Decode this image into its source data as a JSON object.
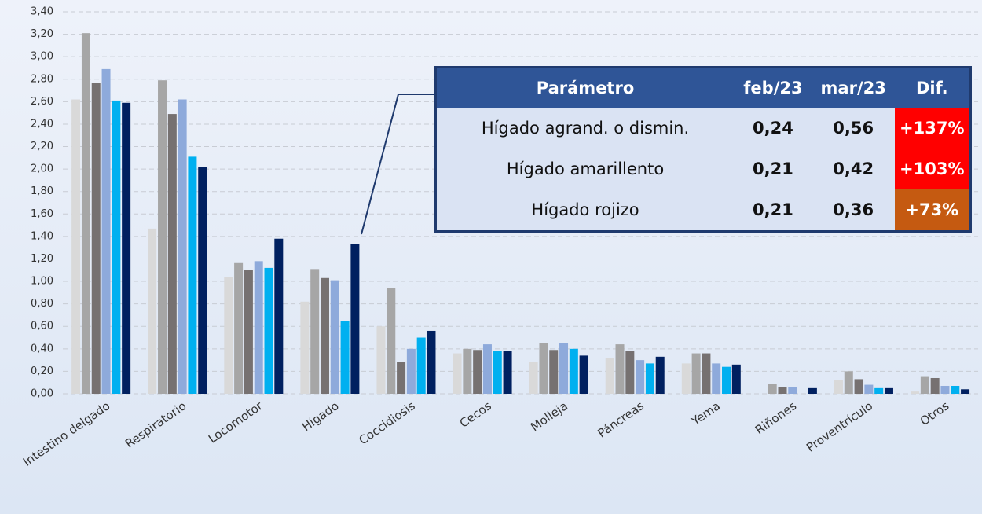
{
  "chart_data": {
    "type": "bar",
    "categories": [
      "Intestino delgado",
      "Respiratorio",
      "Locomotor",
      "Hígado",
      "Coccidiosis",
      "Cecos",
      "Molleja",
      "Páncreas",
      "Yema",
      "Riñones",
      "Proventrículo",
      "Otros"
    ],
    "series": [
      {
        "color": "#d9d9d9",
        "values": [
          2.62,
          1.47,
          1.04,
          0.82,
          0.6,
          0.36,
          0.28,
          0.32,
          0.27,
          null,
          0.12,
          0.02
        ]
      },
      {
        "color": "#a6a6a6",
        "values": [
          3.21,
          2.79,
          1.17,
          1.11,
          0.94,
          0.4,
          0.45,
          0.44,
          0.36,
          0.09,
          0.2,
          0.15
        ]
      },
      {
        "color": "#767171",
        "values": [
          2.77,
          2.49,
          1.1,
          1.03,
          0.28,
          0.39,
          0.39,
          0.38,
          0.36,
          0.06,
          0.13,
          0.14
        ]
      },
      {
        "color": "#8eaadb",
        "values": [
          2.89,
          2.62,
          1.18,
          1.01,
          0.4,
          0.44,
          0.45,
          0.3,
          0.27,
          0.06,
          0.08,
          0.07
        ]
      },
      {
        "color": "#00b0f0",
        "values": [
          2.61,
          2.11,
          1.12,
          0.65,
          0.5,
          0.38,
          0.4,
          0.27,
          0.24,
          null,
          0.05,
          0.07
        ]
      },
      {
        "color": "#002060",
        "values": [
          2.59,
          2.02,
          1.38,
          1.33,
          0.56,
          0.38,
          0.34,
          0.33,
          0.26,
          0.05,
          0.05,
          0.04
        ]
      }
    ],
    "ylim": [
      0,
      3.4
    ],
    "yticks": [
      {
        "value": 0,
        "label": "0,00"
      },
      {
        "value": 0.2,
        "label": "0,20"
      },
      {
        "value": 0.4,
        "label": "0,40"
      },
      {
        "value": 0.6,
        "label": "0,60"
      },
      {
        "value": 0.8,
        "label": "0,80"
      },
      {
        "value": 1,
        "label": "1,00"
      },
      {
        "value": 1.2,
        "label": "1,20"
      },
      {
        "value": 1.4,
        "label": "1,40"
      },
      {
        "value": 1.6,
        "label": "1,60"
      },
      {
        "value": 1.8,
        "label": "1,80"
      },
      {
        "value": 2,
        "label": "2,00"
      },
      {
        "value": 2.2,
        "label": "2,20"
      },
      {
        "value": 2.4,
        "label": "2,40"
      },
      {
        "value": 2.6,
        "label": "2,60"
      },
      {
        "value": 2.8,
        "label": "2,80"
      },
      {
        "value": 3,
        "label": "3,00"
      },
      {
        "value": 3.2,
        "label": "3,20"
      },
      {
        "value": 3.4,
        "label": "3,40"
      }
    ],
    "grid": true
  },
  "table": {
    "header": [
      "Parámetro",
      "feb/23",
      "mar/23",
      "Dif."
    ],
    "rows": [
      [
        "Hígado agrand. o dismin.",
        "0,24",
        "0,56",
        "+137%"
      ],
      [
        "Hígado amarillento",
        "0,21",
        "0,42",
        "+103%"
      ],
      [
        "Hígado rojizo",
        "0,21",
        "0,36",
        "+73%"
      ]
    ],
    "dif_colors": [
      "#ff0000",
      "#ff0000",
      "#c55a11"
    ]
  }
}
